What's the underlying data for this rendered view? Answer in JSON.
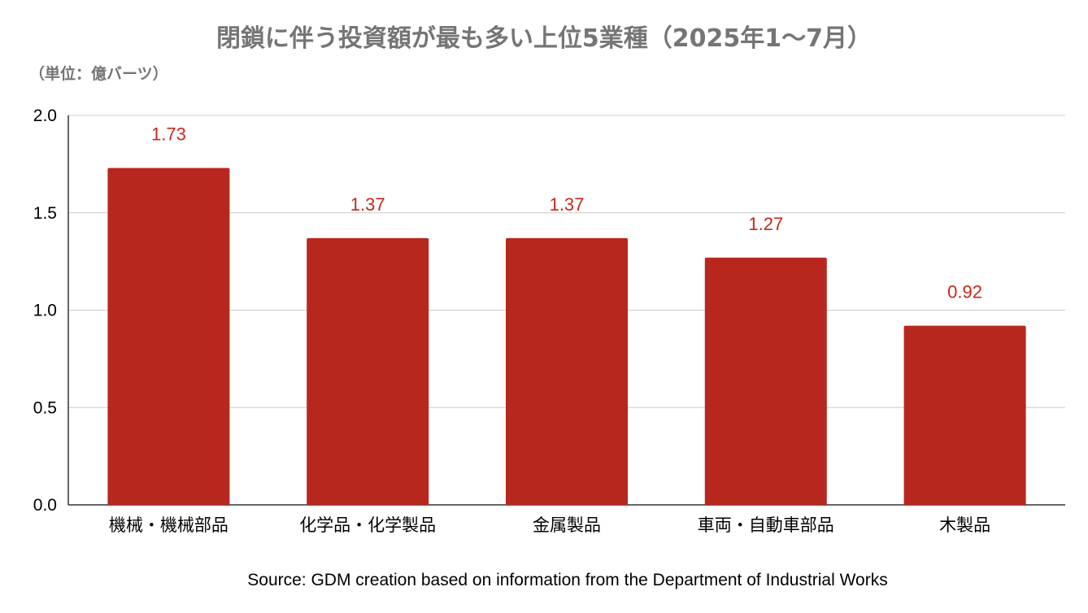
{
  "chart_data": {
    "type": "bar",
    "title": "閉鎖に伴う投資額が最も多い上位5業種（2025年1〜7月）",
    "unit_label": "（単位：億バーツ）",
    "categories": [
      "機械・機械部品",
      "化学品・化学製品",
      "金属製品",
      "車両・自動車部品",
      "木製品"
    ],
    "series": [
      {
        "values": [
          1.73,
          1.37,
          1.37,
          1.27,
          0.92
        ],
        "color": "#B8271E"
      }
    ],
    "data_labels": [
      "1.73",
      "1.37",
      "1.37",
      "1.27",
      "0.92"
    ],
    "ylim": [
      0,
      2.0
    ],
    "yticks": [
      "0.0",
      "0.5",
      "1.0",
      "1.5",
      "2.0"
    ],
    "grid": true,
    "legend": "none",
    "source": "Source: GDM creation based on information from the Department of Industrial Works"
  },
  "colors": {
    "bar": "#B8271E",
    "data_label": "#C5281C",
    "title": "#757575",
    "grid": "#CCCCCC",
    "axis": "#333333"
  }
}
